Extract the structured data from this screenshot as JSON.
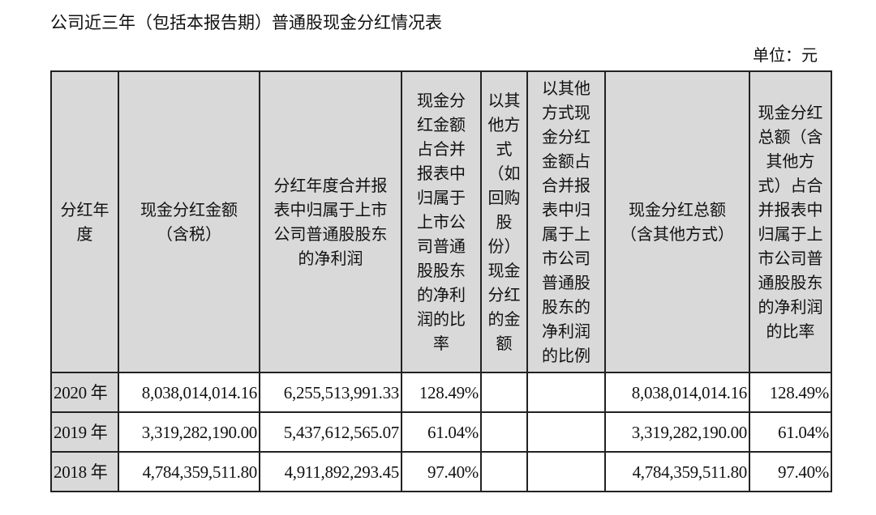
{
  "title": "公司近三年（包括本报告期）普通股现金分红情况表",
  "unit": "单位：元",
  "table": {
    "headers": [
      "分红年\n度",
      "现金分红金额\n（含税）",
      "分红年度合并报\n表中归属于上市\n公司普通股股东\n的净利润",
      "现金分\n红金额\n占合并\n报表中\n归属于\n上市公\n司普通\n股股东\n的净利\n润的比\n率",
      "以其\n他方\n式\n（如\n回购\n股\n份）\n现金\n分红\n的金\n额",
      "以其他\n方式现\n金分红\n金额占\n合并报\n表中归\n属于上\n市公司\n普通股\n股东的\n净利润\n的比例",
      "现金分红总额\n（含其他方式）",
      "现金分红\n总额（含\n其他方\n式）占合\n并报表中\n归属于上\n市公司普\n通股股东\n的净利润\n的比率"
    ],
    "rows": [
      [
        "2020 年",
        "8,038,014,014.16",
        "6,255,513,991.33",
        "128.49%",
        "",
        "",
        "8,038,014,014.16",
        "128.49%"
      ],
      [
        "2019 年",
        "3,319,282,190.00",
        "5,437,612,565.07",
        "61.04%",
        "",
        "",
        "3,319,282,190.00",
        "61.04%"
      ],
      [
        "2018 年",
        "4,784,359,511.80",
        "4,911,892,293.45",
        "97.40%",
        "",
        "",
        "4,784,359,511.80",
        "97.40%"
      ]
    ]
  }
}
